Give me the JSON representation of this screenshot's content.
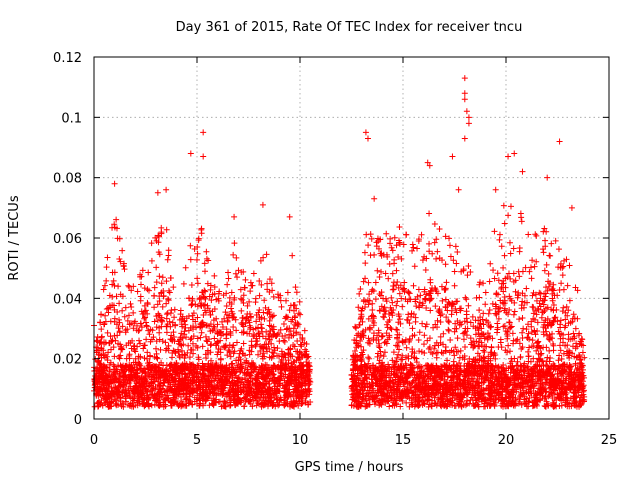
{
  "chart_data": {
    "type": "scatter",
    "title": "Day 361 of 2015, Rate Of TEC Index for receiver tncu",
    "xlabel": "GPS time / hours",
    "ylabel": "ROTI / TECUs",
    "xlim": [
      0,
      25
    ],
    "ylim": [
      0,
      0.12
    ],
    "xticks": [
      0,
      5,
      10,
      15,
      20,
      25
    ],
    "yticks": [
      0,
      0.02,
      0.04,
      0.06,
      0.08,
      0.1,
      0.12
    ],
    "xtick_labels": [
      "0",
      "5",
      "10",
      "15",
      "20",
      "25"
    ],
    "ytick_labels": [
      "0",
      "0.02",
      "0.04",
      "0.06",
      "0.08",
      "0.1",
      "0.12"
    ],
    "grid": true,
    "marker": "+",
    "color": "#ff0000",
    "data_gap_hours": [
      10.5,
      12.5
    ],
    "x_coverage_hours": [
      [
        0,
        10.5
      ],
      [
        12.5,
        23.8
      ]
    ],
    "outlier_points": [
      {
        "x": 0.0,
        "y": 0.031
      },
      {
        "x": 1.0,
        "y": 0.078
      },
      {
        "x": 3.1,
        "y": 0.075
      },
      {
        "x": 3.5,
        "y": 0.076
      },
      {
        "x": 4.7,
        "y": 0.088
      },
      {
        "x": 5.3,
        "y": 0.095
      },
      {
        "x": 5.3,
        "y": 0.087
      },
      {
        "x": 6.8,
        "y": 0.067
      },
      {
        "x": 8.2,
        "y": 0.071
      },
      {
        "x": 9.5,
        "y": 0.067
      },
      {
        "x": 13.2,
        "y": 0.095
      },
      {
        "x": 13.3,
        "y": 0.093
      },
      {
        "x": 13.6,
        "y": 0.073
      },
      {
        "x": 16.2,
        "y": 0.085
      },
      {
        "x": 16.3,
        "y": 0.084
      },
      {
        "x": 17.4,
        "y": 0.087
      },
      {
        "x": 17.7,
        "y": 0.076
      },
      {
        "x": 18.0,
        "y": 0.113
      },
      {
        "x": 18.0,
        "y": 0.108
      },
      {
        "x": 18.0,
        "y": 0.106
      },
      {
        "x": 18.1,
        "y": 0.102
      },
      {
        "x": 18.2,
        "y": 0.1
      },
      {
        "x": 18.2,
        "y": 0.098
      },
      {
        "x": 18.0,
        "y": 0.093
      },
      {
        "x": 19.5,
        "y": 0.076
      },
      {
        "x": 20.1,
        "y": 0.087
      },
      {
        "x": 20.4,
        "y": 0.088
      },
      {
        "x": 20.8,
        "y": 0.082
      },
      {
        "x": 22.0,
        "y": 0.08
      },
      {
        "x": 22.6,
        "y": 0.092
      },
      {
        "x": 23.2,
        "y": 0.07
      }
    ]
  }
}
